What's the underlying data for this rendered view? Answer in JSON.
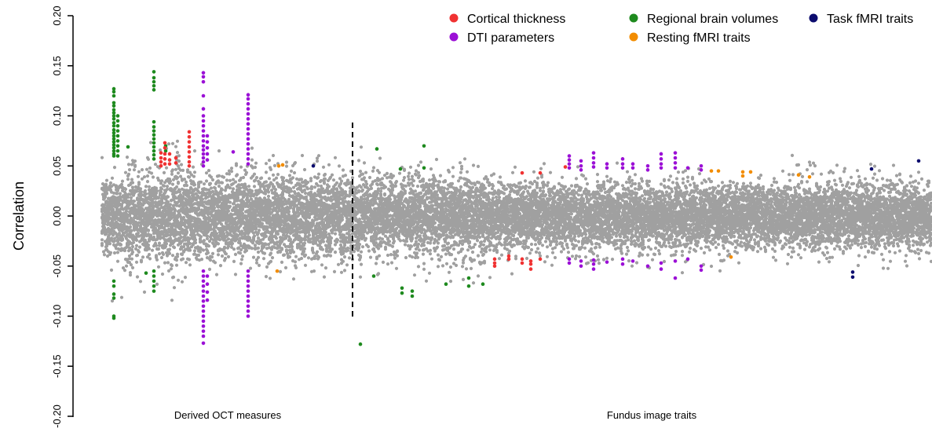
{
  "chart_data": {
    "type": "scatter",
    "ylabel": "Correlation",
    "ylim": [
      -0.2,
      0.2
    ],
    "yticks": [
      "-0.20",
      "-0.15",
      "-0.10",
      "-0.05",
      "0.00",
      "0.05",
      "0.10",
      "0.15",
      "0.20"
    ],
    "group_labels": [
      "Derived OCT measures",
      "Fundus image traits"
    ],
    "background_color": "#a0a0a0",
    "legend_placement": "top-right",
    "categories": [
      {
        "name": "Cortical thickness",
        "color": "#f03232"
      },
      {
        "name": "DTI parameters",
        "color": "#9b10d6"
      },
      {
        "name": "Regional brain volumes",
        "color": "#1e8a1e"
      },
      {
        "name": "Resting fMRI traits",
        "color": "#f28c00"
      },
      {
        "name": "Task fMRI traits",
        "color": "#0c0c6e"
      }
    ],
    "highlighted_points": [
      {
        "category": "Regional brain volumes",
        "x": 145,
        "y": [
          0.127,
          0.124,
          0.12,
          0.113,
          0.11,
          0.106,
          0.103,
          0.1,
          0.097,
          0.093,
          0.09,
          0.086,
          0.083,
          0.08,
          0.077,
          0.074,
          0.071,
          0.068,
          0.065,
          0.062,
          0.06,
          -0.065,
          -0.07,
          -0.078,
          -0.082,
          -0.1,
          -0.102
        ]
      },
      {
        "category": "Regional brain volumes",
        "x": 150,
        "y": [
          0.1,
          0.095,
          0.09,
          0.085,
          0.08,
          0.075,
          0.07,
          0.065,
          0.06
        ]
      },
      {
        "category": "Regional brain volumes",
        "x": 163,
        "y": [
          0.069
        ]
      },
      {
        "category": "Regional brain volumes",
        "x": 196,
        "y": [
          0.144,
          0.138,
          0.134,
          0.13,
          0.126,
          0.094,
          0.089,
          0.085,
          0.081,
          0.077,
          0.073,
          0.069,
          0.065,
          0.061,
          0.057,
          -0.055,
          -0.06,
          -0.065,
          -0.07,
          -0.075
        ]
      },
      {
        "category": "Regional brain volumes",
        "x": 211,
        "y": [
          0.07,
          0.065
        ]
      },
      {
        "category": "Regional brain volumes",
        "x": 186,
        "y": [
          -0.057
        ]
      },
      {
        "category": "Cortical thickness",
        "x": 205,
        "y": [
          0.063,
          0.058,
          0.054,
          0.05
        ]
      },
      {
        "category": "Cortical thickness",
        "x": 210,
        "y": [
          0.073,
          0.068,
          0.062,
          0.057,
          0.052
        ]
      },
      {
        "category": "Cortical thickness",
        "x": 216,
        "y": [
          0.062,
          0.056,
          0.052
        ]
      },
      {
        "category": "Cortical thickness",
        "x": 224,
        "y": [
          0.058,
          0.053
        ]
      },
      {
        "category": "Cortical thickness",
        "x": 241,
        "y": [
          0.084,
          0.079,
          0.074,
          0.069,
          0.064,
          0.059,
          0.054,
          0.05
        ]
      },
      {
        "category": "DTI parameters",
        "x": 259,
        "y": [
          0.143,
          0.139,
          0.134,
          0.12,
          0.107,
          0.1,
          0.095,
          0.09,
          0.085,
          0.08,
          0.075,
          0.07,
          0.066,
          0.062,
          0.058,
          0.054,
          0.05,
          -0.055,
          -0.06,
          -0.065,
          -0.07,
          -0.075,
          -0.08,
          -0.085,
          -0.09,
          -0.095,
          -0.1,
          -0.105,
          -0.11,
          -0.115,
          -0.12,
          -0.127
        ]
      },
      {
        "category": "DTI parameters",
        "x": 264,
        "y": [
          0.08,
          0.074,
          0.068,
          0.062,
          0.056,
          -0.06,
          -0.068,
          -0.076,
          -0.084
        ]
      },
      {
        "category": "DTI parameters",
        "x": 297,
        "y": [
          0.064
        ]
      },
      {
        "category": "DTI parameters",
        "x": 316,
        "y": [
          0.121,
          0.117,
          0.112,
          0.107,
          0.102,
          0.097,
          0.092,
          0.087,
          0.082,
          0.077,
          0.072,
          0.067,
          0.062,
          0.057,
          0.052,
          -0.055,
          -0.06,
          -0.065,
          -0.07,
          -0.075,
          -0.08,
          -0.085,
          -0.09,
          -0.095,
          -0.1
        ]
      },
      {
        "category": "Resting fMRI traits",
        "x": 355,
        "y": [
          0.05
        ]
      },
      {
        "category": "Resting fMRI traits",
        "x": 360,
        "y": [
          0.051
        ]
      },
      {
        "category": "Resting fMRI traits",
        "x": 353,
        "y": [
          -0.055
        ]
      },
      {
        "category": "Task fMRI traits",
        "x": 399,
        "y": [
          0.05
        ]
      },
      {
        "category": "Regional brain volumes",
        "x": 459,
        "y": [
          -0.128
        ]
      },
      {
        "category": "Regional brain volumes",
        "x": 476,
        "y": [
          -0.06
        ]
      },
      {
        "category": "Regional brain volumes",
        "x": 480,
        "y": [
          0.067
        ]
      },
      {
        "category": "Regional brain volumes",
        "x": 510,
        "y": [
          0.047
        ]
      },
      {
        "category": "Regional brain volumes",
        "x": 512,
        "y": [
          -0.072,
          -0.077
        ]
      },
      {
        "category": "Regional brain volumes",
        "x": 525,
        "y": [
          -0.075,
          -0.08
        ]
      },
      {
        "category": "Regional brain volumes",
        "x": 540,
        "y": [
          0.07,
          0.048
        ]
      },
      {
        "category": "Regional brain volumes",
        "x": 568,
        "y": [
          -0.068
        ]
      },
      {
        "category": "Regional brain volumes",
        "x": 597,
        "y": [
          -0.062,
          -0.07
        ]
      },
      {
        "category": "Regional brain volumes",
        "x": 615,
        "y": [
          -0.068
        ]
      },
      {
        "category": "Cortical thickness",
        "x": 630,
        "y": [
          -0.043,
          -0.047,
          -0.05
        ]
      },
      {
        "category": "Cortical thickness",
        "x": 648,
        "y": [
          -0.04,
          -0.043
        ]
      },
      {
        "category": "Cortical thickness",
        "x": 665,
        "y": [
          0.043,
          -0.043,
          -0.047
        ]
      },
      {
        "category": "Cortical thickness",
        "x": 676,
        "y": [
          -0.045,
          -0.048,
          -0.053
        ]
      },
      {
        "category": "Cortical thickness",
        "x": 688,
        "y": [
          0.043,
          -0.043
        ]
      },
      {
        "category": "Cortical thickness",
        "x": 720,
        "y": [
          0.049
        ]
      },
      {
        "category": "DTI parameters",
        "x": 725,
        "y": [
          0.06,
          0.056,
          0.052,
          0.048,
          -0.043,
          -0.047
        ]
      },
      {
        "category": "DTI parameters",
        "x": 740,
        "y": [
          0.055,
          0.05,
          0.046,
          -0.045,
          -0.05
        ]
      },
      {
        "category": "DTI parameters",
        "x": 756,
        "y": [
          0.063,
          0.058,
          0.053,
          0.049,
          -0.044,
          -0.048,
          -0.053
        ]
      },
      {
        "category": "DTI parameters",
        "x": 773,
        "y": [
          0.052,
          0.048,
          -0.046
        ]
      },
      {
        "category": "DTI parameters",
        "x": 793,
        "y": [
          0.057,
          0.052,
          0.048,
          -0.043,
          -0.048
        ]
      },
      {
        "category": "DTI parameters",
        "x": 806,
        "y": [
          0.052,
          0.048,
          -0.045
        ]
      },
      {
        "category": "DTI parameters",
        "x": 825,
        "y": [
          0.05,
          0.046,
          -0.05
        ]
      },
      {
        "category": "DTI parameters",
        "x": 842,
        "y": [
          0.062,
          0.057,
          0.052,
          0.048,
          -0.047,
          -0.053
        ]
      },
      {
        "category": "DTI parameters",
        "x": 860,
        "y": [
          0.063,
          0.058,
          0.053,
          0.048,
          -0.045,
          -0.062
        ]
      },
      {
        "category": "DTI parameters",
        "x": 876,
        "y": [
          0.048,
          -0.043
        ]
      },
      {
        "category": "DTI parameters",
        "x": 893,
        "y": [
          0.05,
          0.046,
          -0.05,
          -0.054
        ]
      },
      {
        "category": "Resting fMRI traits",
        "x": 906,
        "y": [
          0.045
        ]
      },
      {
        "category": "Resting fMRI traits",
        "x": 915,
        "y": [
          0.045
        ]
      },
      {
        "category": "Resting fMRI traits",
        "x": 931,
        "y": [
          -0.041
        ]
      },
      {
        "category": "Resting fMRI traits",
        "x": 946,
        "y": [
          0.044,
          0.04
        ]
      },
      {
        "category": "Resting fMRI traits",
        "x": 956,
        "y": [
          0.044
        ]
      },
      {
        "category": "Resting fMRI traits",
        "x": 1017,
        "y": [
          0.041
        ]
      },
      {
        "category": "Resting fMRI traits",
        "x": 1031,
        "y": [
          0.039
        ]
      },
      {
        "category": "Task fMRI traits",
        "x": 1086,
        "y": [
          -0.056,
          -0.061
        ]
      },
      {
        "category": "Task fMRI traits",
        "x": 1110,
        "y": [
          0.047
        ]
      },
      {
        "category": "Task fMRI traits",
        "x": 1170,
        "y": [
          0.055
        ]
      }
    ]
  }
}
